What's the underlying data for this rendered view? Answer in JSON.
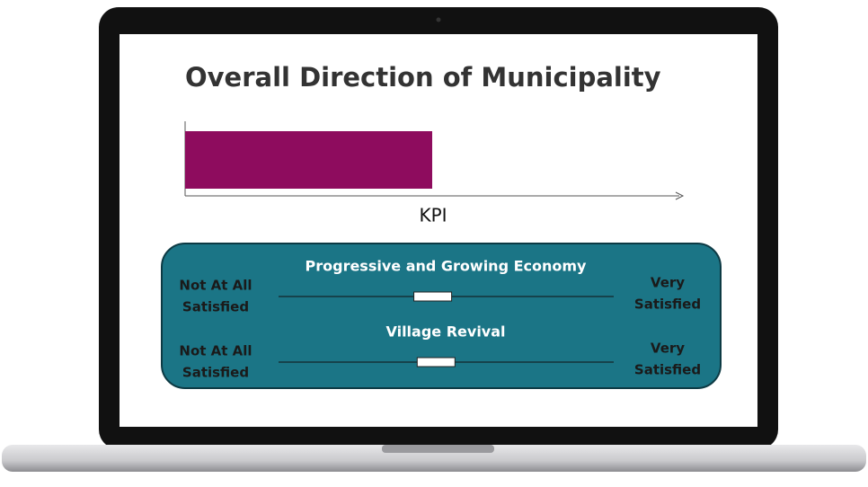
{
  "title": "Overall Direction of Municipality",
  "chart_data": {
    "type": "bar",
    "xlabel": "KPI",
    "categories": [
      null
    ],
    "values": [
      50
    ],
    "xlim": [
      0,
      100
    ],
    "color": "#8e0c5e"
  },
  "sliders": [
    {
      "title": "Progressive and Growing Economy",
      "left_label": [
        "Not At All",
        "Satisfied"
      ],
      "right_label": [
        "Very",
        "Satisfied"
      ],
      "value": 46,
      "range": [
        0,
        100
      ]
    },
    {
      "title": "Village Revival",
      "left_label": [
        "Not At All",
        "Satisfied"
      ],
      "right_label": [
        "Very",
        "Satisfied"
      ],
      "value": 47,
      "range": [
        0,
        100
      ]
    }
  ]
}
